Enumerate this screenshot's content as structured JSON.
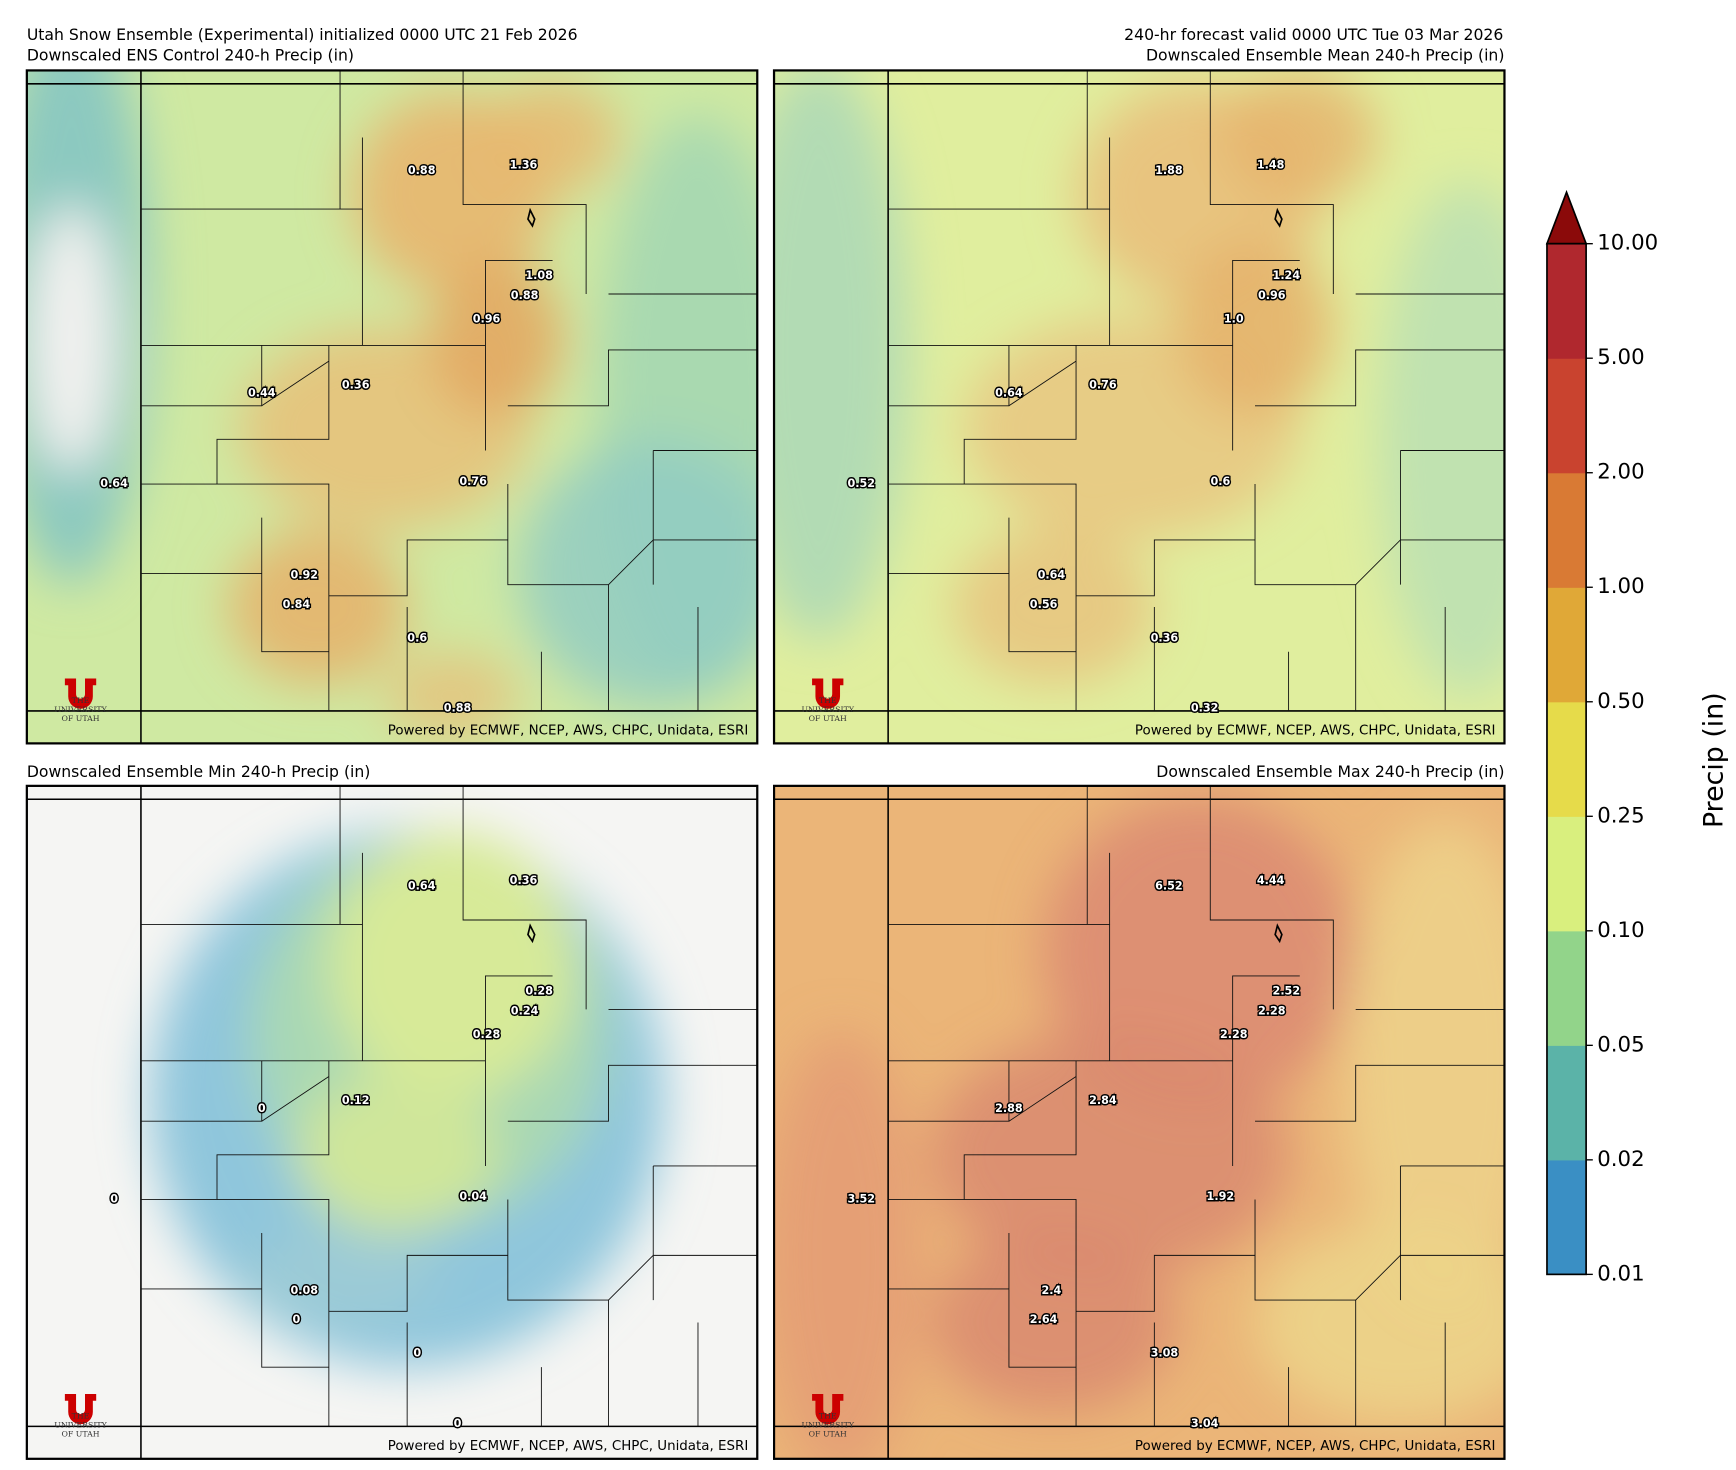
{
  "header": {
    "left": "Utah Snow Ensemble (Experimental) initialized 0000 UTC 21 Feb 2026",
    "right": "240-hr forecast valid 0000 UTC Tue 03 Mar 2026"
  },
  "logo": {
    "lines": [
      "THE",
      "UNIVERSITY",
      "OF UTAH"
    ]
  },
  "panels": [
    {
      "title": "Downscaled ENS Control 240-h Precip (in)",
      "credit": "Powered by ECMWF, NCEP, AWS, CHPC, Unidata, ESRI",
      "points": [
        "0.88",
        "1.36",
        "1.08",
        "0.88",
        "0.96",
        "0.44",
        "0.36",
        "0.64",
        "0.76",
        "0.92",
        "0.84",
        "0.6",
        "0.88"
      ]
    },
    {
      "title": "Downscaled Ensemble Mean 240-h Precip (in)",
      "credit": "Powered by ECMWF, NCEP, AWS, CHPC, Unidata, ESRI",
      "points": [
        "1.88",
        "1.48",
        "1.24",
        "0.96",
        "1.0",
        "0.64",
        "0.76",
        "0.52",
        "0.6",
        "0.64",
        "0.56",
        "0.36",
        "0.32"
      ]
    },
    {
      "title": "Downscaled Ensemble Min 240-h Precip (in)",
      "credit": "Powered by ECMWF, NCEP, AWS, CHPC, Unidata, ESRI",
      "points": [
        "0.64",
        "0.36",
        "0.28",
        "0.24",
        "0.28",
        "0",
        "0.12",
        "0",
        "0.04",
        "0.08",
        "0",
        "0",
        "0"
      ]
    },
    {
      "title": "Downscaled Ensemble Max 240-h Precip (in)",
      "credit": "Powered by ECMWF, NCEP, AWS, CHPC, Unidata, ESRI",
      "points": [
        "6.52",
        "4.44",
        "2.52",
        "2.28",
        "2.28",
        "2.88",
        "2.84",
        "3.52",
        "1.92",
        "2.4",
        "2.64",
        "3.08",
        "3.04"
      ]
    }
  ],
  "colorbar": {
    "label": "Precip (in)",
    "ticks": [
      "0.01",
      "0.02",
      "0.05",
      "0.10",
      "0.25",
      "0.50",
      "1.00",
      "2.00",
      "5.00",
      "10.00"
    ],
    "colors": [
      "#3a8fc4",
      "#5bb3a8",
      "#92d48a",
      "#d9ef7e",
      "#e6db4a",
      "#e0a837",
      "#d97a34",
      "#c9432f",
      "#b0282e"
    ],
    "extend_color": "#8b0a0a"
  }
}
